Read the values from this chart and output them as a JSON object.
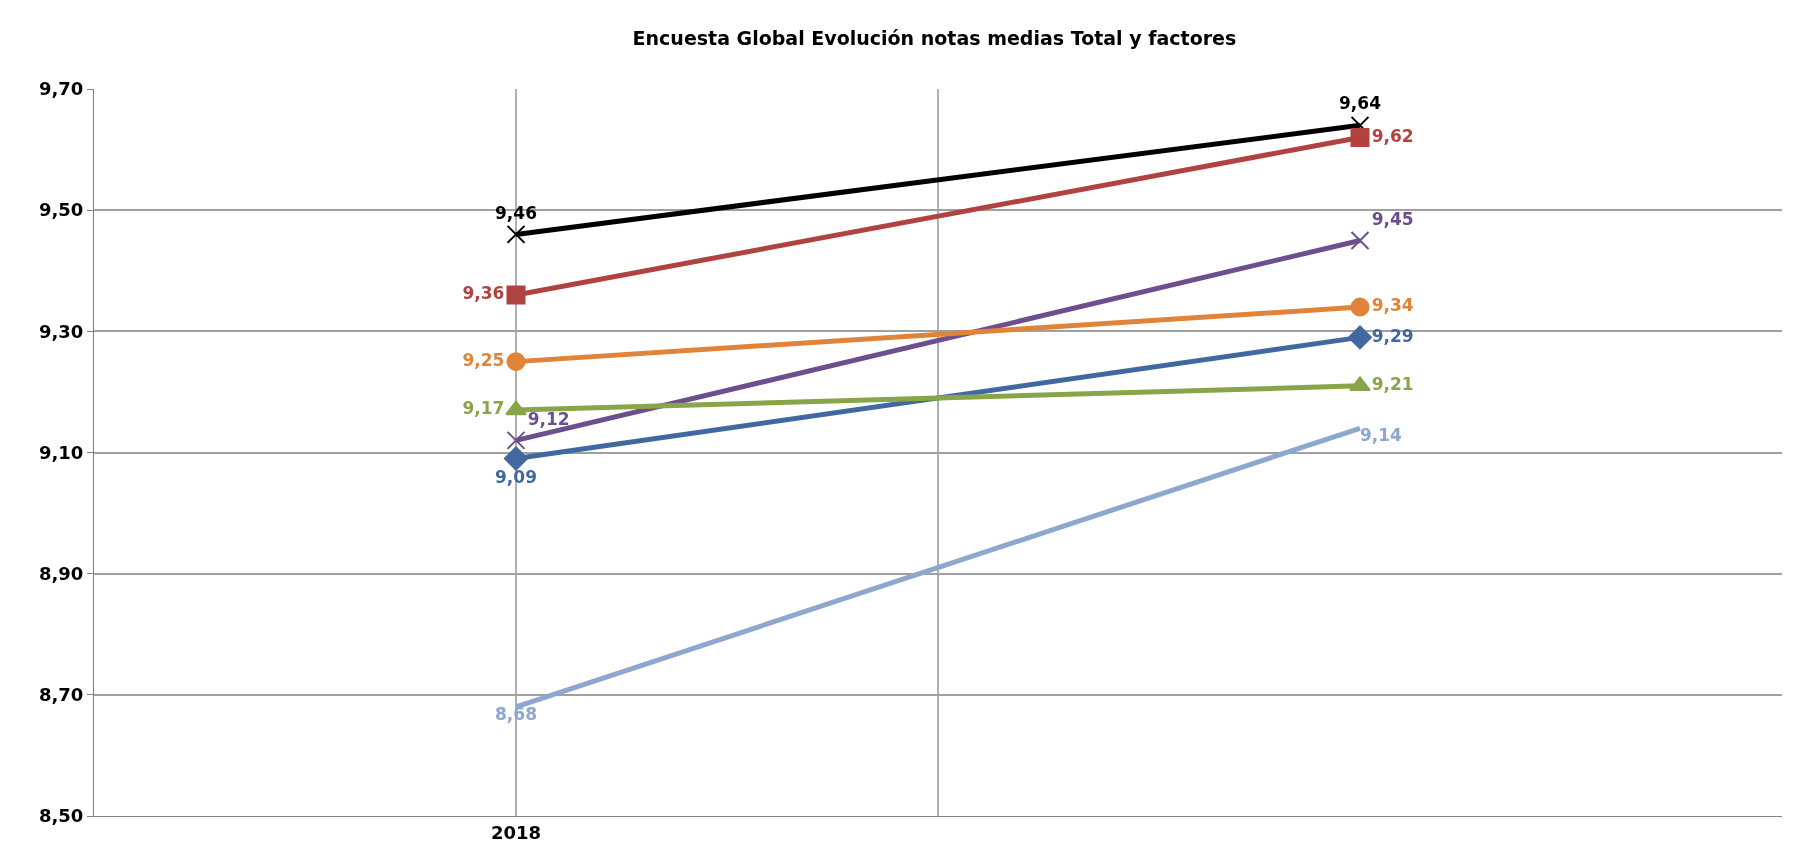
{
  "chart_data": {
    "type": "line",
    "title": "Encuesta Global Evolución notas medias Total y factores",
    "categories": [
      "2018",
      null
    ],
    "ylim": [
      8.5,
      9.7
    ],
    "yticks": [
      {
        "value": 8.5,
        "label": "8,50"
      },
      {
        "value": 8.7,
        "label": "8,70"
      },
      {
        "value": 8.9,
        "label": "8,90"
      },
      {
        "value": 9.1,
        "label": "9,10"
      },
      {
        "value": 9.3,
        "label": "9,30"
      },
      {
        "value": 9.5,
        "label": "9,50"
      },
      {
        "value": 9.7,
        "label": "9,70"
      }
    ],
    "grid": true,
    "series": [
      {
        "color": "#000000",
        "marker": "cross",
        "values": [
          9.46,
          9.64
        ],
        "value_labels": [
          "9,46",
          "9,64"
        ]
      },
      {
        "color": "#b0433f",
        "marker": "square",
        "values": [
          9.36,
          9.62
        ],
        "value_labels": [
          "9,36",
          "9,62"
        ]
      },
      {
        "color": "#6d4f8e",
        "marker": "cross",
        "values": [
          9.12,
          9.45
        ],
        "value_labels": [
          "9,12",
          "9,45"
        ]
      },
      {
        "color": "#e0843a",
        "marker": "circle",
        "values": [
          9.25,
          9.34
        ],
        "value_labels": [
          "9,25",
          "9,34"
        ]
      },
      {
        "color": "#41699f",
        "marker": "diamond",
        "values": [
          9.09,
          9.29
        ],
        "value_labels": [
          "9,09",
          "9,29"
        ]
      },
      {
        "color": "#88a54a",
        "marker": "triangle",
        "values": [
          9.17,
          9.21
        ],
        "value_labels": [
          "9,17",
          "9,21"
        ]
      },
      {
        "color": "#8ea7cf",
        "marker": "none",
        "values": [
          8.68,
          9.14
        ],
        "value_labels": [
          "8,68",
          "9,14"
        ]
      }
    ]
  }
}
